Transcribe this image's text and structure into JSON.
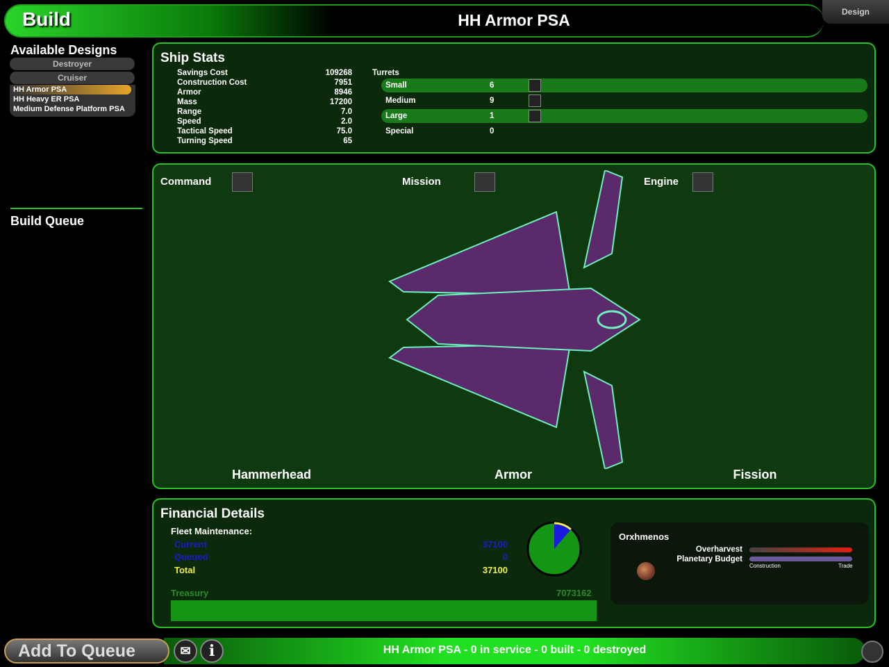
{
  "header": {
    "screen_title": "Build",
    "design_name": "HH Armor PSA",
    "tab": "Design"
  },
  "sidebar": {
    "available_title": "Available Designs",
    "categories": [
      "Destroyer",
      "Cruiser"
    ],
    "designs": [
      {
        "label": "HH Armor PSA",
        "selected": true
      },
      {
        "label": "HH Heavy ER PSA",
        "selected": false
      },
      {
        "label": "Medium Defense Platform PSA",
        "selected": false
      }
    ],
    "queue_title": "Build Queue"
  },
  "ship_stats": {
    "title": "Ship Stats",
    "rows": [
      {
        "label": "Savings Cost",
        "value": "109268"
      },
      {
        "label": "Construction Cost",
        "value": "7951"
      },
      {
        "label": "Armor",
        "value": "8946"
      },
      {
        "label": "Mass",
        "value": "17200"
      },
      {
        "label": "Range",
        "value": "7.0"
      },
      {
        "label": "Speed",
        "value": "2.0"
      },
      {
        "label": "Tactical Speed",
        "value": "75.0"
      },
      {
        "label": "Turning Speed",
        "value": "65"
      }
    ],
    "turrets_title": "Turrets",
    "turrets": [
      {
        "label": "Small",
        "value": "6"
      },
      {
        "label": "Medium",
        "value": "9"
      },
      {
        "label": "Large",
        "value": "1"
      },
      {
        "label": "Special",
        "value": "0"
      }
    ]
  },
  "components": {
    "slots": [
      {
        "label": "Command",
        "value": "Hammerhead"
      },
      {
        "label": "Mission",
        "value": "Armor"
      },
      {
        "label": "Engine",
        "value": "Fission"
      }
    ]
  },
  "financial": {
    "title": "Financial Details",
    "fleet_title": "Fleet Maintenance:",
    "current_label": "Current",
    "current_value": "37100",
    "queued_label": "Queued",
    "queued_value": "0",
    "total_label": "Total",
    "total_value": "37100",
    "treasury_label": "Treasury",
    "treasury_value": "7073162",
    "planet": {
      "name": "Orxhmenos",
      "overharvest_label": "Overharvest",
      "budget_label": "Planetary Budget",
      "budget_left": "Construction",
      "budget_right": "Trade"
    }
  },
  "footer": {
    "add_button": "Add To Queue",
    "status": "HH Armor PSA - 0 in service - 0 built - 0 destroyed"
  },
  "colors": {
    "accent": "#29c229",
    "selected": "#e7a52a",
    "panel": "#0b2a0b"
  }
}
